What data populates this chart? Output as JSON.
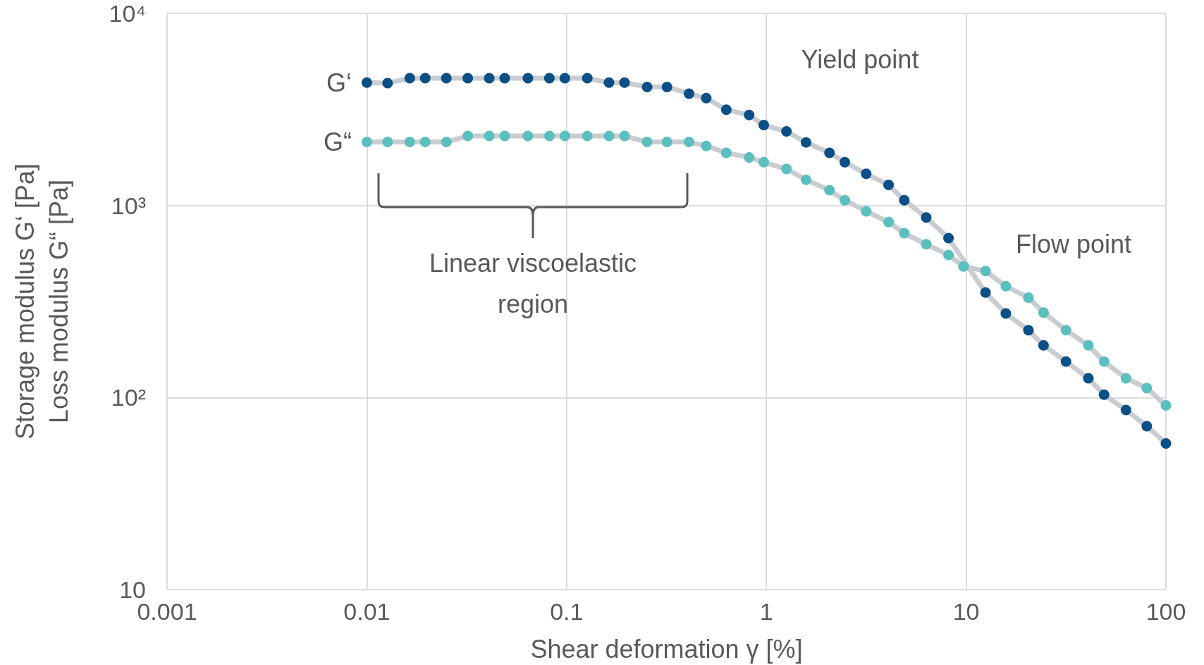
{
  "chart_data": {
    "type": "line",
    "xlabel": "Shear deformation γ [%]",
    "ylabel": "Storage modulus G‘ [Pa]\nLoss modulus G“ [Pa]",
    "x": [
      0.01,
      0.0127,
      0.0164,
      0.0196,
      0.025,
      0.032,
      0.041,
      0.049,
      0.064,
      0.082,
      0.098,
      0.127,
      0.163,
      0.195,
      0.253,
      0.318,
      0.41,
      0.5,
      0.63,
      0.82,
      0.97,
      1.26,
      1.58,
      2.07,
      2.47,
      3.16,
      4.09,
      4.9,
      6.31,
      8.16,
      9.7,
      12.5,
      15.8,
      20.5,
      24.4,
      31.6,
      40.9,
      49,
      63.1,
      80.2,
      100
    ],
    "series": [
      {
        "name": "G‘",
        "color": "#0a4f86",
        "values": [
          4360,
          4330,
          4600,
          4600,
          4600,
          4600,
          4600,
          4600,
          4600,
          4600,
          4600,
          4600,
          4360,
          4360,
          4140,
          4140,
          3820,
          3620,
          3150,
          2960,
          2620,
          2430,
          2130,
          1880,
          1680,
          1460,
          1280,
          1065,
          866,
          676,
          null,
          352,
          274,
          224,
          187,
          154,
          126,
          103.5,
          86.2,
          71,
          57.7
        ]
      },
      {
        "name": "G“",
        "color": "#5bbfbf",
        "values": [
          2140,
          2140,
          2140,
          2140,
          2140,
          2300,
          2300,
          2300,
          2300,
          2300,
          2300,
          2300,
          2300,
          2300,
          2140,
          2140,
          2140,
          2040,
          1880,
          1780,
          1680,
          1550,
          1360,
          1200,
          1065,
          932,
          820,
          717,
          628,
          552,
          481,
          456,
          380,
          331,
          277,
          224,
          187,
          154,
          126,
          112,
          91
        ]
      }
    ],
    "log": "xy",
    "xlim": [
      0.001,
      100
    ],
    "ylim": [
      10,
      10000
    ],
    "xticks": [
      0.001,
      0.01,
      0.1,
      1,
      10,
      100
    ],
    "yticks": [
      10,
      {
        "value": 100,
        "label": "10²"
      },
      {
        "value": 1000,
        "label": "10³"
      },
      {
        "value": 10000,
        "label": "10⁴"
      }
    ],
    "grid": true,
    "legend": false,
    "marker": "circle",
    "line_style": "solid",
    "annotations": [
      "Yield point",
      "Flow point",
      "Linear viscoelastic\nregion"
    ]
  }
}
